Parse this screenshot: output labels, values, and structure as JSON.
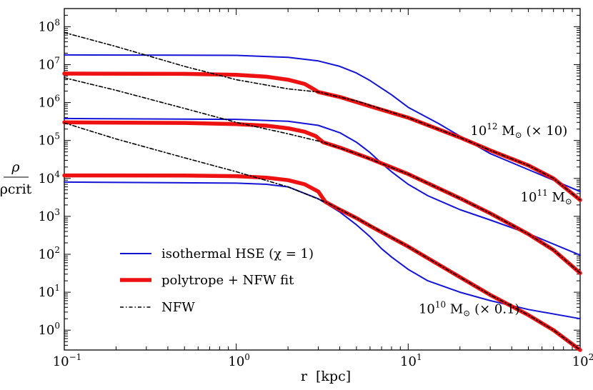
{
  "chart_data": {
    "type": "line",
    "x_scale": "log",
    "y_scale": "log",
    "xlim": [
      0.1,
      100
    ],
    "ylim": [
      0.3,
      300000000
    ],
    "xlabel": "r  [kpc]",
    "ylabel": {
      "numerator": "ρ",
      "denominator": "ρcrit"
    },
    "x_ticks": [
      {
        "value": 0.1,
        "base": "10",
        "exp": "−1"
      },
      {
        "value": 1,
        "base": "10",
        "exp": "0"
      },
      {
        "value": 10,
        "base": "10",
        "exp": "1"
      },
      {
        "value": 100,
        "base": "10",
        "exp": "2"
      }
    ],
    "y_ticks": [
      {
        "value": 1,
        "base": "10",
        "exp": "0"
      },
      {
        "value": 10,
        "base": "10",
        "exp": "1"
      },
      {
        "value": 100,
        "base": "10",
        "exp": "2"
      },
      {
        "value": 1000,
        "base": "10",
        "exp": "3"
      },
      {
        "value": 10000,
        "base": "10",
        "exp": "4"
      },
      {
        "value": 100000,
        "base": "10",
        "exp": "5"
      },
      {
        "value": 1000000,
        "base": "10",
        "exp": "6"
      },
      {
        "value": 10000000,
        "base": "10",
        "exp": "7"
      },
      {
        "value": 100000000,
        "base": "10",
        "exp": "8"
      }
    ],
    "legend": {
      "position": "lower-left",
      "entries": [
        {
          "key": "iso",
          "label": "isothermal HSE (χ = 1)",
          "color": "#1414d6",
          "style": "solid"
        },
        {
          "key": "poly",
          "label": "polytrope + NFW fit",
          "color": "#ee1111",
          "style": "thick"
        },
        {
          "key": "nfw",
          "label": "NFW",
          "color": "#000000",
          "style": "dot-dash"
        }
      ]
    },
    "annotations": [
      {
        "key": "m12",
        "base": "10",
        "exp": "12",
        "unit": " M",
        "suffix": " (× 10)",
        "x": 23,
        "y": 140000
      },
      {
        "key": "m11",
        "base": "10",
        "exp": "11",
        "unit": " M",
        "suffix": "",
        "x": 45,
        "y": 2500
      },
      {
        "key": "m10",
        "base": "10",
        "exp": "10",
        "unit": " M",
        "suffix": " (× 0.1)",
        "x": 11.5,
        "y": 2.8
      }
    ],
    "series": [
      {
        "name": "isothermal HSE (χ = 1)",
        "style": "iso",
        "color": "#1414d6",
        "x": [
          0.1,
          1,
          2,
          3,
          4,
          5,
          6,
          8,
          10,
          15,
          20,
          30,
          50,
          70,
          100
        ],
        "y": [
          18000000,
          17500000,
          15500000,
          12500000,
          9000000,
          6000000,
          3800000,
          1600000,
          750000,
          280000,
          130000,
          45000,
          17000,
          9000,
          4500
        ]
      },
      {
        "name": "isothermal HSE (χ = 1)",
        "style": "iso",
        "color": "#1414d6",
        "x": [
          0.1,
          1,
          2,
          3,
          4,
          5,
          6,
          7,
          8,
          10,
          13,
          20,
          30,
          50,
          100
        ],
        "y": [
          380000,
          360000,
          320000,
          250000,
          160000,
          90000,
          48000,
          25000,
          15000,
          7000,
          3500,
          1500,
          800,
          350,
          95
        ]
      },
      {
        "name": "isothermal HSE (χ = 1)",
        "style": "iso",
        "color": "#1414d6",
        "x": [
          0.1,
          1,
          1.5,
          2,
          3,
          4,
          5,
          6,
          7,
          8,
          10,
          13,
          20,
          30,
          50,
          100
        ],
        "y": [
          8000,
          7500,
          7000,
          6000,
          2900,
          1300,
          600,
          290,
          140,
          85,
          40,
          20,
          10,
          6,
          3.5,
          2
        ]
      },
      {
        "name": "polytrope + NFW fit",
        "style": "poly",
        "color": "#ee1111",
        "x": [
          0.1,
          0.5,
          1,
          1.5,
          2,
          2.5,
          2.8,
          3,
          4,
          6,
          10,
          20,
          30,
          50,
          70,
          100
        ],
        "y": [
          5800000,
          5700000,
          5400000,
          4800000,
          4000000,
          3100000,
          2300000,
          1900000,
          1400000,
          800000,
          400000,
          120000,
          55000,
          22000,
          10000,
          2700
        ]
      },
      {
        "name": "polytrope + NFW fit",
        "style": "poly",
        "color": "#ee1111",
        "x": [
          0.1,
          0.5,
          1,
          1.5,
          2,
          2.5,
          2.9,
          3.2,
          4,
          6,
          10,
          20,
          30,
          50,
          70,
          100
        ],
        "y": [
          300000,
          290000,
          270000,
          245000,
          210000,
          170000,
          130000,
          90000,
          65000,
          33000,
          13000,
          3000,
          1200,
          340,
          130,
          32
        ]
      },
      {
        "name": "polytrope + NFW fit",
        "style": "poly",
        "color": "#ee1111",
        "x": [
          0.1,
          0.5,
          1,
          1.5,
          2,
          2.5,
          3,
          3.3,
          4,
          5,
          6,
          10,
          20,
          30,
          50,
          70,
          100
        ],
        "y": [
          12000,
          11900,
          11500,
          10500,
          9000,
          7000,
          4500,
          2400,
          1500,
          900,
          560,
          160,
          25,
          8.5,
          2.5,
          1,
          0.3
        ]
      },
      {
        "name": "NFW",
        "style": "nfw",
        "color": "#000000",
        "x": [
          0.1,
          0.2,
          0.5,
          1,
          2,
          3,
          5,
          10,
          20,
          30,
          50,
          70,
          100
        ],
        "y": [
          70000000,
          30000000,
          9000000,
          4000000,
          2300000,
          1900000,
          1100000,
          400000,
          120000,
          55000,
          22000,
          10000,
          2700
        ]
      },
      {
        "name": "NFW",
        "style": "nfw",
        "color": "#000000",
        "x": [
          0.1,
          0.2,
          0.5,
          1,
          2,
          3.2,
          5,
          10,
          20,
          30,
          50,
          70,
          100
        ],
        "y": [
          4500000,
          2100000,
          700000,
          300000,
          150000,
          90000,
          45000,
          13000,
          3000,
          1200,
          340,
          130,
          32
        ]
      },
      {
        "name": "NFW",
        "style": "nfw",
        "color": "#000000",
        "x": [
          0.1,
          0.2,
          0.5,
          1,
          2,
          3.3,
          5,
          10,
          20,
          30,
          50,
          70,
          100
        ],
        "y": [
          290000,
          110000,
          35000,
          15000,
          6000,
          2400,
          900,
          160,
          25,
          8.5,
          2.5,
          1,
          0.3
        ]
      }
    ]
  }
}
